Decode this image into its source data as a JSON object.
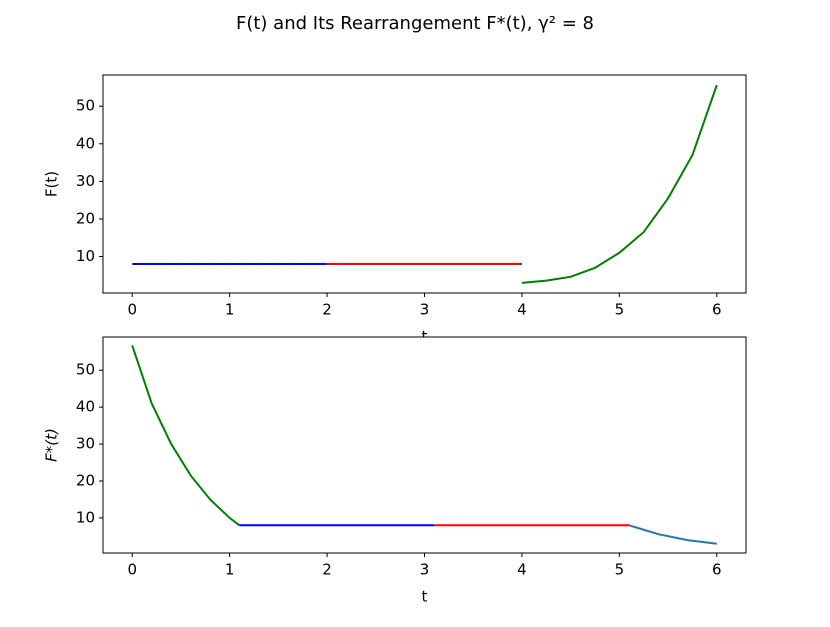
{
  "title": "F(t) and Its Rearrangement F*(t), γ² = 8",
  "chart_data": [
    {
      "type": "line",
      "x_label": "t",
      "y_label": "F(t)",
      "xlim": [
        -0.3,
        6.3
      ],
      "xticks": [
        0,
        1,
        2,
        3,
        4,
        5,
        6
      ],
      "ylim": [
        0.3,
        58.3
      ],
      "yticks": [
        10,
        20,
        30,
        40,
        50
      ],
      "series": [
        {
          "color": "#0000ff",
          "x": [
            0,
            2
          ],
          "values": [
            8,
            8
          ]
        },
        {
          "color": "#ff0000",
          "x": [
            2,
            4
          ],
          "values": [
            8,
            8
          ]
        },
        {
          "color": "#008000",
          "x": [
            4,
            4.25,
            4.5,
            4.75,
            5,
            5.25,
            5.5,
            5.75,
            6
          ],
          "values": [
            3.0,
            3.6,
            4.6,
            7,
            11,
            16.5,
            25.5,
            37,
            55.6
          ]
        }
      ]
    },
    {
      "type": "line",
      "x_label": "t",
      "y_label": "F*(t)",
      "xlim": [
        -0.3,
        6.3
      ],
      "xticks": [
        0,
        1,
        2,
        3,
        4,
        5,
        6
      ],
      "ylim": [
        0.5,
        59.0
      ],
      "yticks": [
        10,
        20,
        30,
        40,
        50
      ],
      "series": [
        {
          "color": "#008000",
          "x": [
            0,
            0.2,
            0.4,
            0.6,
            0.8,
            1.0,
            1.1
          ],
          "values": [
            56.7,
            41,
            30,
            21.5,
            15,
            10,
            8
          ]
        },
        {
          "color": "#0000ff",
          "x": [
            1.1,
            3.1
          ],
          "values": [
            8,
            8
          ]
        },
        {
          "color": "#ff0000",
          "x": [
            3.1,
            5.1
          ],
          "values": [
            8,
            8
          ]
        },
        {
          "color": "#1f77b4",
          "x": [
            5.1,
            5.4,
            5.7,
            6
          ],
          "values": [
            8,
            5.6,
            4,
            3.0
          ]
        }
      ]
    }
  ]
}
